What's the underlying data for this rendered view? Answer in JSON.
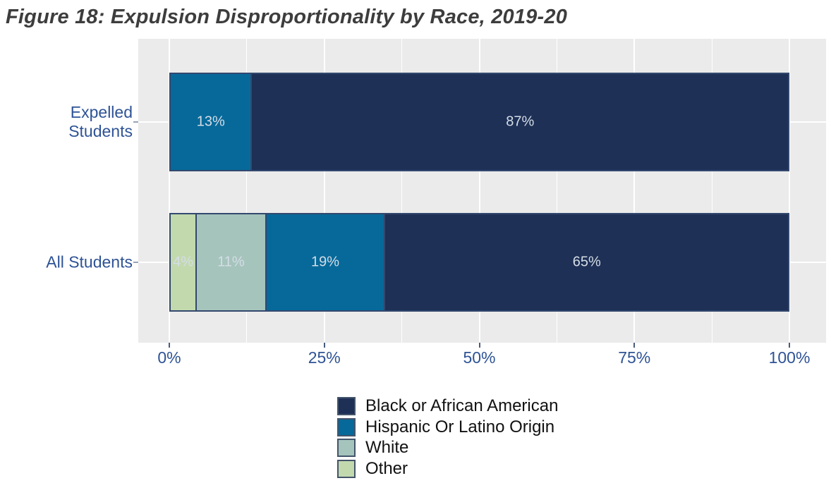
{
  "title": "Figure 18: Expulsion Disproportionality by Race, 2019-20",
  "chart_data": {
    "type": "bar",
    "orientation": "horizontal",
    "stacked": true,
    "title": "Figure 18: Expulsion Disproportionality by Race, 2019-20",
    "xlabel": "",
    "ylabel": "",
    "xlim": [
      0,
      100
    ],
    "grid": true,
    "legend_position": "bottom",
    "panel_background": "#ebebeb",
    "gridline_color": "#ffffff",
    "categories": [
      "Expelled Students",
      "All Students"
    ],
    "category_display_lines": [
      [
        "Expelled",
        "Students"
      ],
      [
        "All Students"
      ]
    ],
    "x_ticks": [
      {
        "label": "0%",
        "percent": 0
      },
      {
        "label": "25%",
        "percent": 25
      },
      {
        "label": "50%",
        "percent": 50
      },
      {
        "label": "75%",
        "percent": 75
      },
      {
        "label": "100%",
        "percent": 100
      }
    ],
    "x_minor_percents": [
      12.5,
      37.5,
      62.5,
      87.5
    ],
    "series": [
      {
        "name": "Black or African American",
        "color": "#1e3056",
        "values": [
          87,
          65
        ]
      },
      {
        "name": "Hispanic Or Latino Origin",
        "color": "#07699a",
        "values": [
          13,
          19
        ]
      },
      {
        "name": "White",
        "color": "#a5c4bc",
        "values": [
          0,
          11
        ]
      },
      {
        "name": "Other",
        "color": "#c2d9ae",
        "values": [
          0,
          4
        ]
      }
    ],
    "bars": [
      {
        "category": "Expelled Students",
        "segments": [
          {
            "series": "Hispanic Or Latino Origin",
            "value": 13,
            "label": "13%",
            "color": "#07699a"
          },
          {
            "series": "Black or African American",
            "value": 87,
            "label": "87%",
            "color": "#1e3056"
          }
        ]
      },
      {
        "category": "All Students",
        "segments": [
          {
            "series": "Other",
            "value": 4,
            "label": "4%",
            "color": "#c2d9ae"
          },
          {
            "series": "White",
            "value": 11,
            "label": "11%",
            "color": "#a5c4bc"
          },
          {
            "series": "Hispanic Or Latino Origin",
            "value": 19,
            "label": "19%",
            "color": "#07699a"
          },
          {
            "series": "Black or African American",
            "value": 65,
            "label": "65%",
            "color": "#1e3056"
          }
        ]
      }
    ],
    "legend": [
      {
        "label": "Black or African American",
        "color": "#1e3056"
      },
      {
        "label": "Hispanic Or Latino Origin",
        "color": "#07699a"
      },
      {
        "label": "White",
        "color": "#a5c4bc"
      },
      {
        "label": "Other",
        "color": "#c2d9ae"
      }
    ],
    "colors": {
      "segment_border": "#33486e",
      "legend_swatch_border": "#44546a",
      "axis_text": "#2e5395",
      "title_text": "#3d3d3d",
      "value_label_text": "#d5dde6"
    }
  }
}
